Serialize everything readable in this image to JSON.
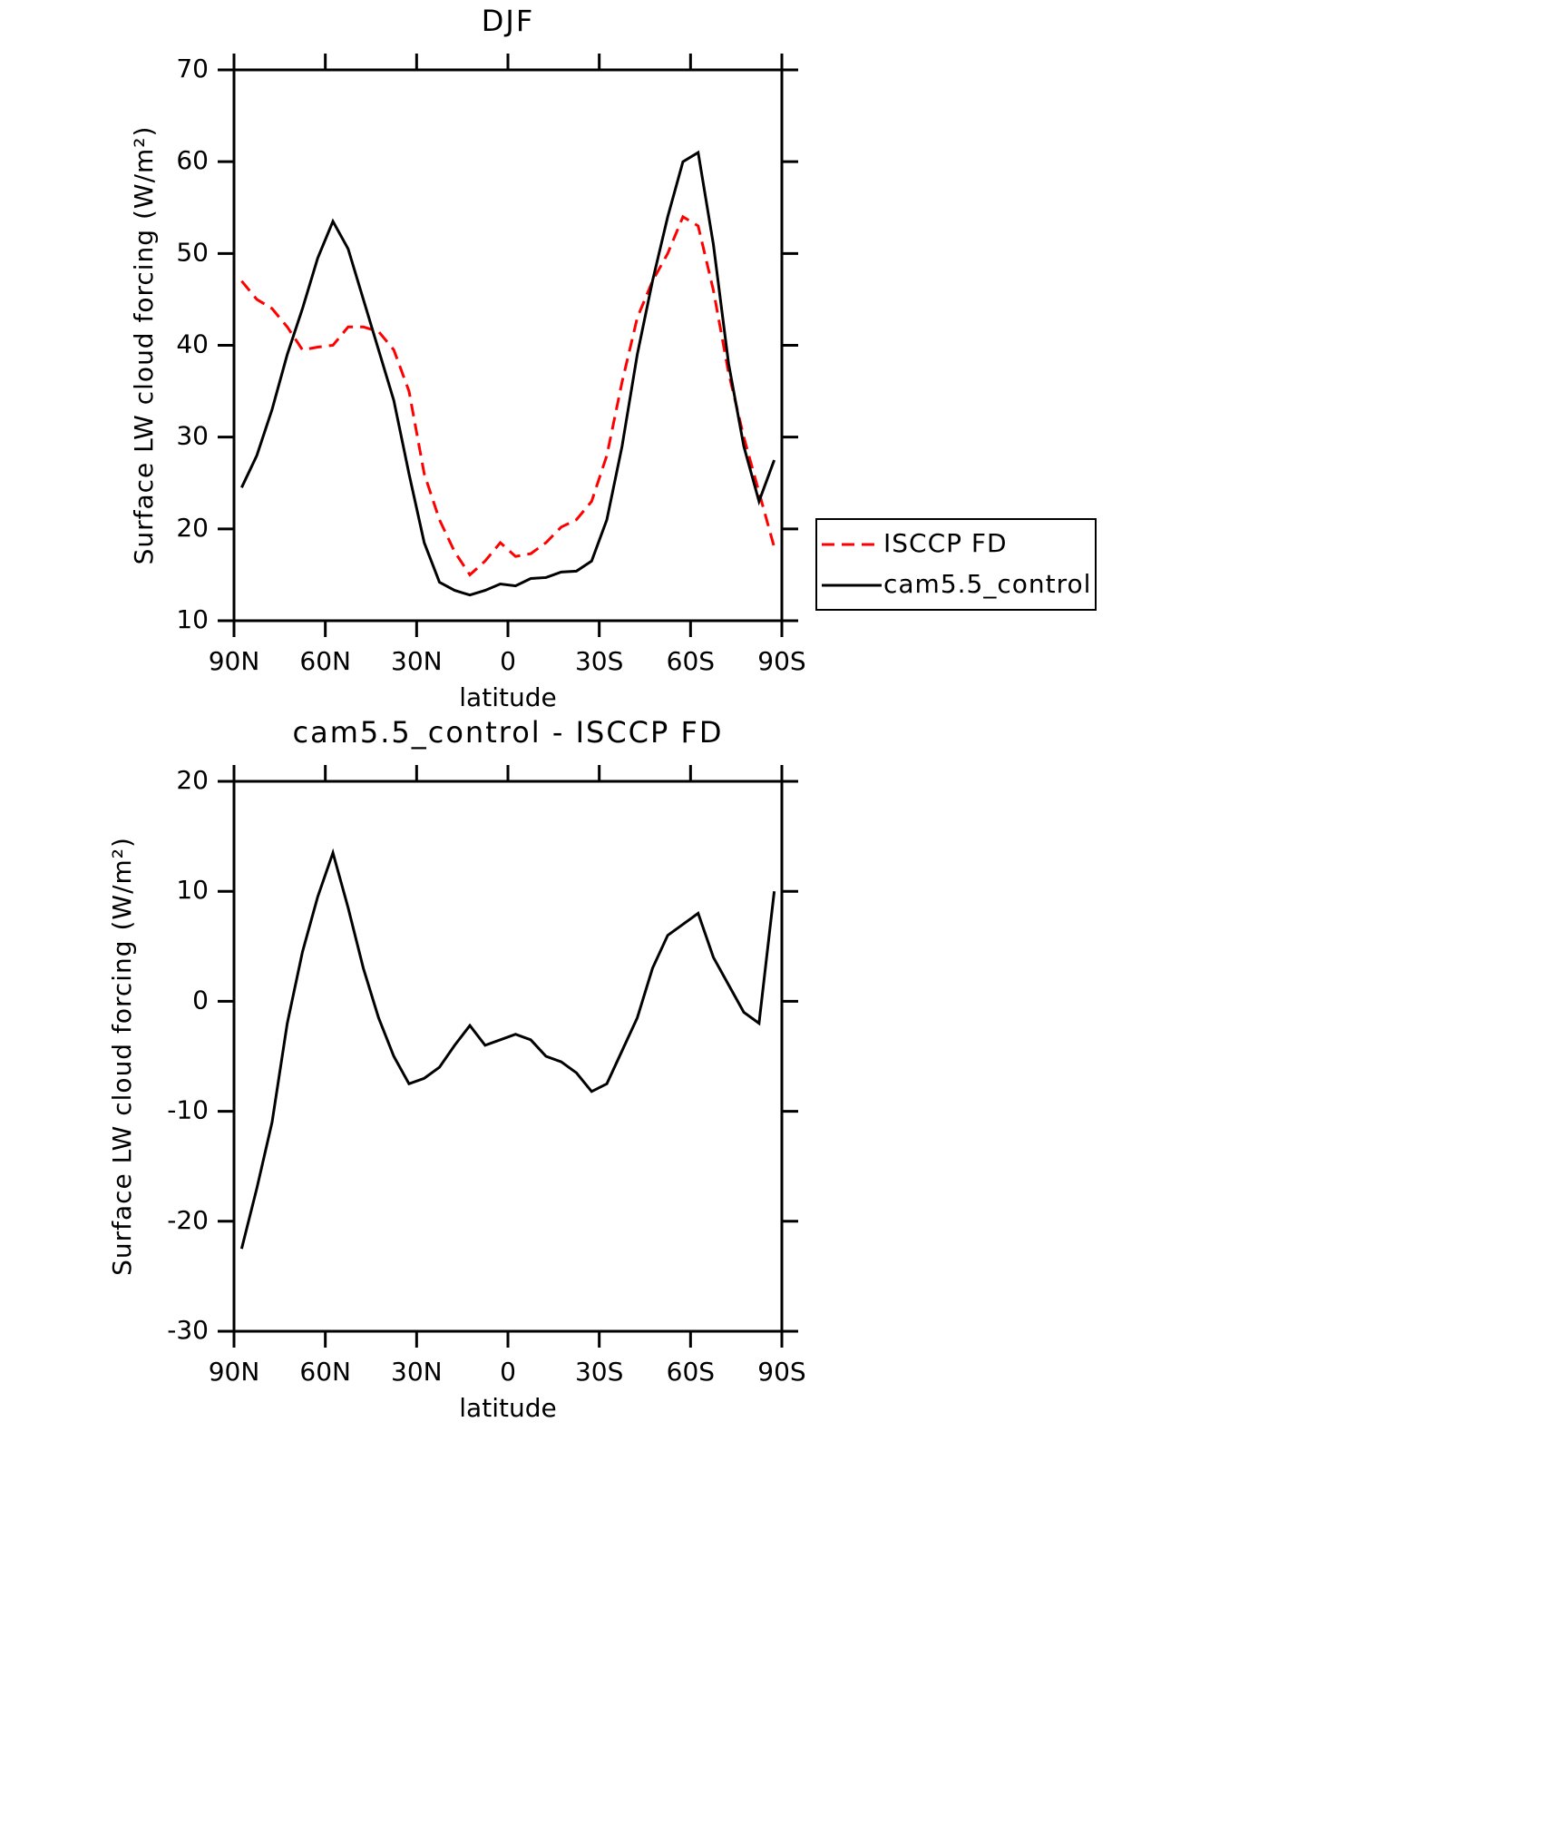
{
  "chart_data": [
    {
      "type": "line",
      "title": "DJF",
      "xlabel": "latitude",
      "ylabel": "Surface LW cloud forcing (W/m²)",
      "x": [
        87.5,
        82.5,
        77.5,
        72.5,
        67.5,
        62.5,
        57.5,
        52.5,
        47.5,
        42.5,
        37.5,
        32.5,
        27.5,
        22.5,
        17.5,
        12.5,
        7.5,
        2.5,
        -2.5,
        -7.5,
        -12.5,
        -17.5,
        -22.5,
        -27.5,
        -32.5,
        -37.5,
        -42.5,
        -47.5,
        -52.5,
        -57.5,
        -62.5,
        -67.5,
        -72.5,
        -77.5,
        -82.5,
        -87.5
      ],
      "series": [
        {
          "name": "ISCCP FD",
          "color": "#ff0000",
          "dash": true,
          "values": [
            47,
            45,
            44,
            42,
            39.5,
            39.8,
            40,
            42,
            42,
            41.5,
            39.5,
            35,
            26,
            21,
            17.5,
            15,
            16.5,
            18.5,
            17,
            17.3,
            18.5,
            20.2,
            21,
            23,
            28,
            36,
            43,
            47,
            50,
            54,
            53,
            46,
            37,
            30,
            24,
            18
          ]
        },
        {
          "name": "cam5.5_control",
          "color": "#000000",
          "dash": false,
          "values": [
            24.5,
            28,
            33,
            39,
            44,
            49.5,
            53.5,
            50.5,
            45,
            39.5,
            34,
            26,
            18.5,
            14.2,
            13.3,
            12.8,
            13.3,
            14,
            13.8,
            14.6,
            14.7,
            15.3,
            15.4,
            16.5,
            21,
            29,
            39,
            47,
            54,
            60,
            61,
            51,
            38,
            29,
            23,
            27.5
          ]
        }
      ],
      "xlim": [
        90,
        -90
      ],
      "xticks": [
        {
          "value": 90,
          "label": "90N"
        },
        {
          "value": 60,
          "label": "60N"
        },
        {
          "value": 30,
          "label": "30N"
        },
        0,
        {
          "value": -30,
          "label": "30S"
        },
        {
          "value": -60,
          "label": "60S"
        },
        {
          "value": -90,
          "label": "90S"
        }
      ],
      "ylim": [
        10,
        70
      ],
      "yticks": [
        10,
        20,
        30,
        40,
        50,
        60,
        70
      ],
      "legend": "right"
    },
    {
      "type": "line",
      "title": "cam5.5_control - ISCCP FD",
      "xlabel": "latitude",
      "ylabel": "Surface LW cloud forcing (W/m²)",
      "x": [
        87.5,
        82.5,
        77.5,
        72.5,
        67.5,
        62.5,
        57.5,
        52.5,
        47.5,
        42.5,
        37.5,
        32.5,
        27.5,
        22.5,
        17.5,
        12.5,
        7.5,
        2.5,
        -2.5,
        -7.5,
        -12.5,
        -17.5,
        -22.5,
        -27.5,
        -32.5,
        -37.5,
        -42.5,
        -47.5,
        -52.5,
        -57.5,
        -62.5,
        -67.5,
        -72.5,
        -77.5,
        -82.5,
        -87.5
      ],
      "series": [
        {
          "color": "#000000",
          "dash": false,
          "values": [
            -22.5,
            -17,
            -11,
            -2,
            4.5,
            9.5,
            13.5,
            8.5,
            3,
            -1.5,
            -5,
            -7.5,
            -7,
            -6,
            -4,
            -2.2,
            -4,
            -3.5,
            -3,
            -3.5,
            -5,
            -5.5,
            -6.5,
            -8.2,
            -7.5,
            -4.5,
            -1.5,
            3,
            6,
            7,
            8,
            4,
            1.5,
            -1,
            -2,
            10
          ]
        }
      ],
      "xlim": [
        90,
        -90
      ],
      "xticks": [
        {
          "value": 90,
          "label": "90N"
        },
        {
          "value": 60,
          "label": "60N"
        },
        {
          "value": 30,
          "label": "30N"
        },
        0,
        {
          "value": -30,
          "label": "30S"
        },
        {
          "value": -60,
          "label": "60S"
        },
        {
          "value": -90,
          "label": "90S"
        }
      ],
      "ylim": [
        -30,
        20
      ],
      "yticks": [
        -30,
        -20,
        -10,
        0,
        10,
        20
      ]
    }
  ]
}
